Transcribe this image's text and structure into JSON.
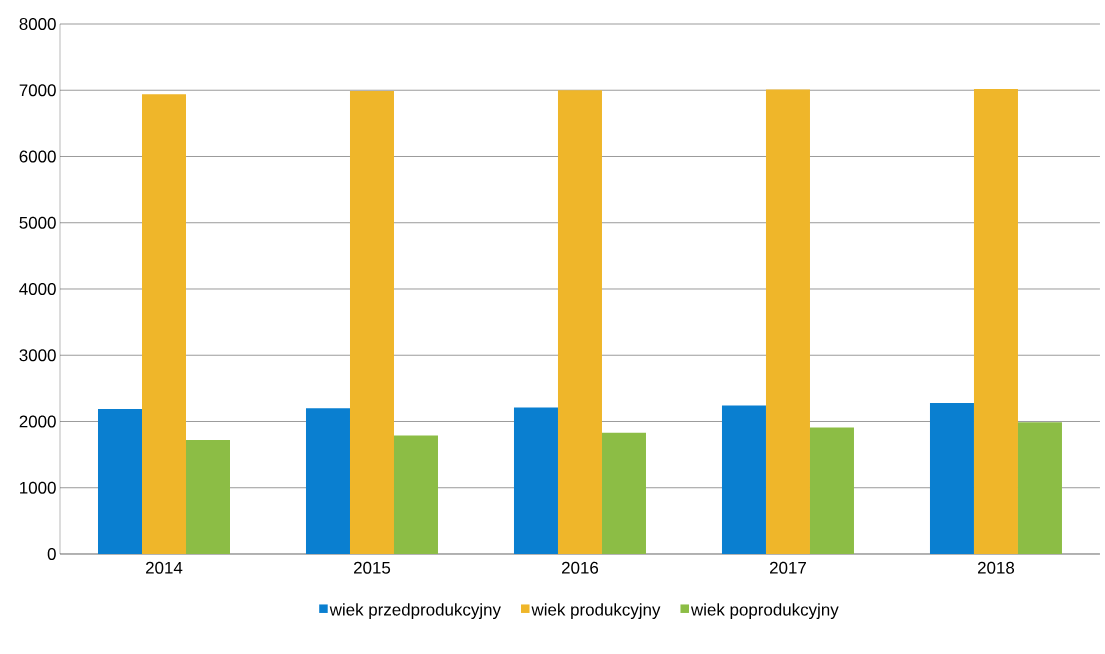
{
  "chart_data": {
    "type": "bar",
    "categories": [
      "2014",
      "2015",
      "2016",
      "2017",
      "2018"
    ],
    "series": [
      {
        "name": "wiek przedprodukcyjny",
        "color": "#0a7fd0",
        "values": [
          2190,
          2200,
          2210,
          2240,
          2280
        ]
      },
      {
        "name": "wiek produkcyjny",
        "color": "#efb62a",
        "values": [
          6940,
          6990,
          7000,
          7010,
          7020
        ]
      },
      {
        "name": "wiek poprodukcyjny",
        "color": "#8cbd45",
        "values": [
          1720,
          1790,
          1830,
          1910,
          1990
        ]
      }
    ],
    "ylim": [
      0,
      8000
    ],
    "yticks": [
      0,
      1000,
      2000,
      3000,
      4000,
      5000,
      6000,
      7000,
      8000
    ],
    "grid": "y",
    "legend": "bottom"
  }
}
